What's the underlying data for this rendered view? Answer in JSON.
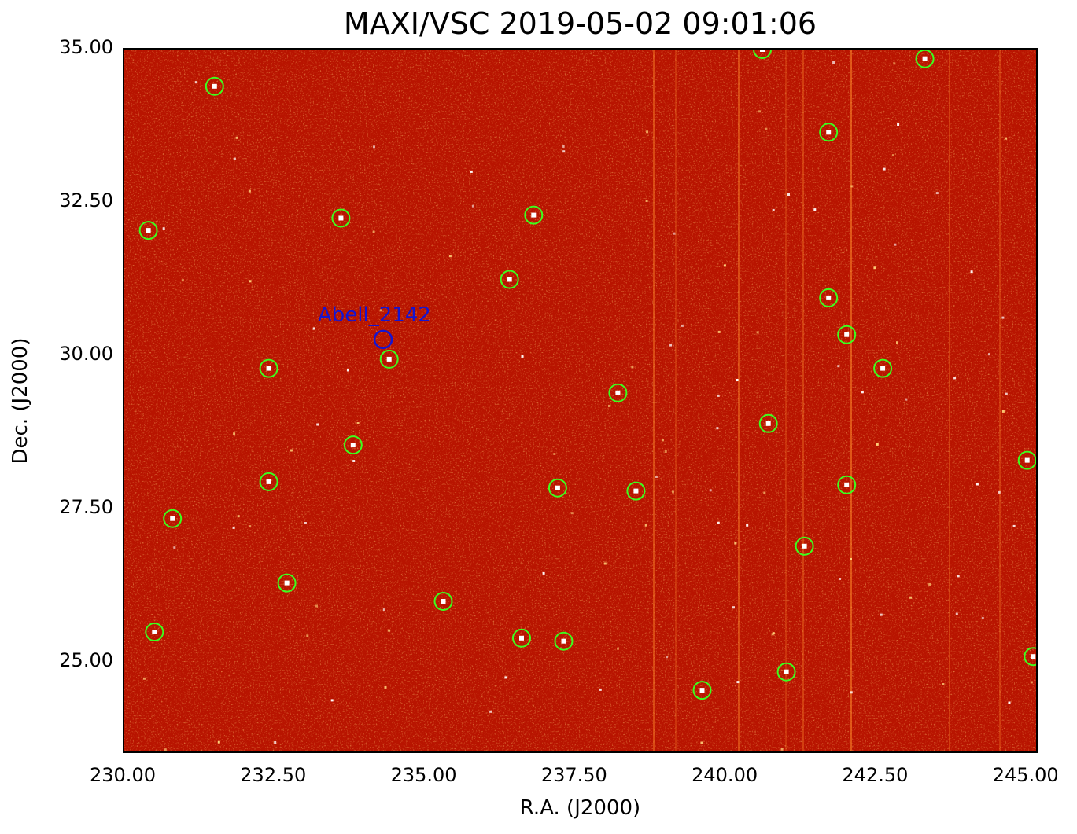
{
  "title": "MAXI/VSC 2019-05-02 09:01:06",
  "axes": {
    "xlabel": "R.A. (J2000)",
    "ylabel": "Dec. (J2000)",
    "xlim": [
      230.0,
      245.2
    ],
    "ylim": [
      23.5,
      35.0
    ],
    "x_ticks": [
      "230.00",
      "232.50",
      "235.00",
      "237.50",
      "240.00",
      "242.50",
      "245.00"
    ],
    "y_ticks": [
      "25.00",
      "27.50",
      "30.00",
      "32.50",
      "35.00"
    ]
  },
  "colors": {
    "background": "#b81400",
    "source_circle": "#3cff1e",
    "target_circle": "#1414d2",
    "target_label": "#1414d2"
  },
  "target": {
    "name": "Abell_2142",
    "ra": 234.3,
    "dec": 30.27
  },
  "sources": [
    [
      231.5,
      34.4
    ],
    [
      230.4,
      32.05
    ],
    [
      233.6,
      32.25
    ],
    [
      236.8,
      32.3
    ],
    [
      236.4,
      31.25
    ],
    [
      232.4,
      29.8
    ],
    [
      234.4,
      29.95
    ],
    [
      238.2,
      29.4
    ],
    [
      233.8,
      28.55
    ],
    [
      232.4,
      27.95
    ],
    [
      230.8,
      27.35
    ],
    [
      237.2,
      27.85
    ],
    [
      238.5,
      27.8
    ],
    [
      232.7,
      26.3
    ],
    [
      230.5,
      25.5
    ],
    [
      235.3,
      26.0
    ],
    [
      236.6,
      25.4
    ],
    [
      237.3,
      25.35
    ],
    [
      239.6,
      24.55
    ],
    [
      240.6,
      35.0
    ],
    [
      243.3,
      34.85
    ],
    [
      241.7,
      33.65
    ],
    [
      241.7,
      30.95
    ],
    [
      242.0,
      30.35
    ],
    [
      242.6,
      29.8
    ],
    [
      240.7,
      28.9
    ],
    [
      242.0,
      27.9
    ],
    [
      241.3,
      26.9
    ],
    [
      241.0,
      24.85
    ],
    [
      245.0,
      28.3
    ],
    [
      245.1,
      25.1
    ]
  ]
}
